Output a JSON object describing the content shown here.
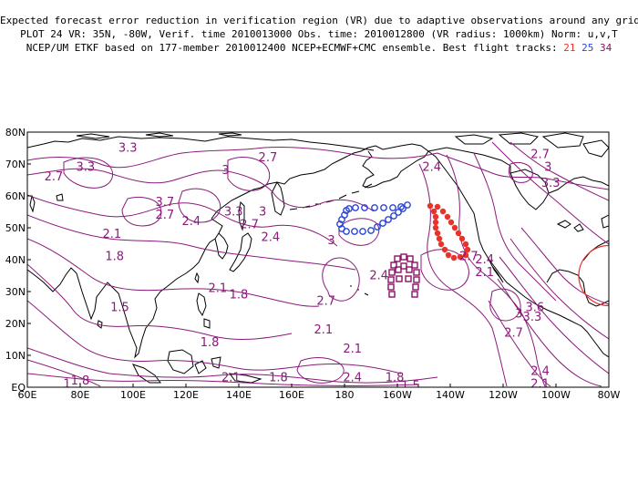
{
  "header": {
    "line1": "Expected forecast error reduction in verification region (VR) due to adaptive observations around any grid point.",
    "line2": "PLOT 24 VR: 35N, -80W, Verif. time 2010013000 Obs. time: 2010012800 (VR radius: 1000km) Norm: u,v,T",
    "line3_prefix": "NCEP/UM ETKF based on 177-member 2010012400 NCEP+ECMWF+CMC ensemble. Best flight tracks:",
    "tracks": [
      "21",
      "25",
      "34"
    ]
  },
  "map": {
    "lon_labels": [
      "60E",
      "80E",
      "100E",
      "120E",
      "140E",
      "160E",
      "180",
      "160W",
      "140W",
      "120W",
      "100W",
      "80W"
    ],
    "lat_labels": [
      "EQ",
      "10N",
      "20N",
      "30N",
      "40N",
      "50N",
      "60N",
      "70N",
      "80N"
    ],
    "lon_range": [
      60,
      280
    ],
    "lat_range": [
      0,
      80
    ],
    "contour_color": "#8b1a7a",
    "contour_labels": [
      {
        "text": "2.7",
        "lon": 151,
        "lat": 72
      },
      {
        "text": "3.3",
        "lon": 82,
        "lat": 69
      },
      {
        "text": "3.3",
        "lon": 98,
        "lat": 75
      },
      {
        "text": "2.7",
        "lon": 70,
        "lat": 66
      },
      {
        "text": "3",
        "lon": 135,
        "lat": 68
      },
      {
        "text": "2.4",
        "lon": 213,
        "lat": 69
      },
      {
        "text": "2.7",
        "lon": 254,
        "lat": 73
      },
      {
        "text": "3",
        "lon": 257,
        "lat": 69
      },
      {
        "text": "3.3",
        "lon": 258,
        "lat": 64
      },
      {
        "text": "3.7",
        "lon": 112,
        "lat": 58
      },
      {
        "text": "2.7",
        "lon": 112,
        "lat": 54
      },
      {
        "text": "2.4",
        "lon": 122,
        "lat": 52
      },
      {
        "text": "3.3",
        "lon": 138,
        "lat": 55
      },
      {
        "text": "3",
        "lon": 149,
        "lat": 55
      },
      {
        "text": "2.7",
        "lon": 144,
        "lat": 51
      },
      {
        "text": "2.4",
        "lon": 152,
        "lat": 47
      },
      {
        "text": "3",
        "lon": 175,
        "lat": 46
      },
      {
        "text": "2.1",
        "lon": 92,
        "lat": 48
      },
      {
        "text": "1.8",
        "lon": 93,
        "lat": 41
      },
      {
        "text": "2.1",
        "lon": 132,
        "lat": 31
      },
      {
        "text": "1.8",
        "lon": 140,
        "lat": 29
      },
      {
        "text": "2.4",
        "lon": 193,
        "lat": 35
      },
      {
        "text": "2.7",
        "lon": 173,
        "lat": 27
      },
      {
        "text": "2.1",
        "lon": 172,
        "lat": 18
      },
      {
        "text": "1.5",
        "lon": 95,
        "lat": 25
      },
      {
        "text": "1.8",
        "lon": 129,
        "lat": 14
      },
      {
        "text": "2.1",
        "lon": 183,
        "lat": 12
      },
      {
        "text": "2.1",
        "lon": 137,
        "lat": 3
      },
      {
        "text": "1.8",
        "lon": 155,
        "lat": 3
      },
      {
        "text": "2.4",
        "lon": 183,
        "lat": 3
      },
      {
        "text": "1.8",
        "lon": 199,
        "lat": 3
      },
      {
        "text": "1",
        "lon": 75,
        "lat": 1
      },
      {
        "text": "1.8",
        "lon": 80,
        "lat": 2
      },
      {
        "text": "1.5",
        "lon": 205,
        "lat": 0.5
      },
      {
        "text": "2.4",
        "lon": 233,
        "lat": 40
      },
      {
        "text": "2.7",
        "lon": 227,
        "lat": 41
      },
      {
        "text": "2.1",
        "lon": 233,
        "lat": 36
      },
      {
        "text": "3.6",
        "lon": 252,
        "lat": 25
      },
      {
        "text": "3.3",
        "lon": 251,
        "lat": 22
      },
      {
        "text": "3",
        "lon": 246,
        "lat": 23
      },
      {
        "text": "2.7",
        "lon": 244,
        "lat": 17
      },
      {
        "text": "2.4",
        "lon": 254,
        "lat": 5
      },
      {
        "text": "2.1",
        "lon": 254,
        "lat": 1
      }
    ],
    "vr_center": {
      "lon": 280,
      "lat": 35
    },
    "track_colors": {
      "21": "#e8322a",
      "25": "#2a44d8",
      "34": "#8b0f6a"
    }
  }
}
